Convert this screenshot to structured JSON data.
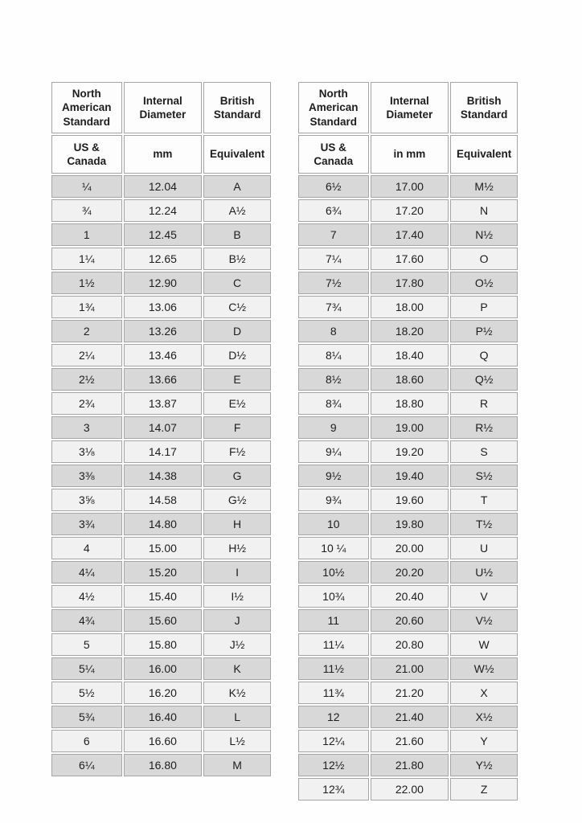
{
  "colors": {
    "row_dark": "#d8d8d8",
    "row_light": "#f1f1f1",
    "border": "#a5a5a5",
    "header_bg": "#fdfdfd",
    "text": "#1d1d1d",
    "page_bg": "#fefefe"
  },
  "tables": [
    {
      "header": [
        "North American Standard",
        "Internal Diameter",
        "British Standard"
      ],
      "subheader": [
        "US & Canada",
        "mm",
        "Equivalent"
      ],
      "rows": [
        [
          "¼",
          "12.04",
          "A"
        ],
        [
          "¾",
          "12.24",
          "A½"
        ],
        [
          "1",
          "12.45",
          "B"
        ],
        [
          "1¼",
          "12.65",
          "B½"
        ],
        [
          "1½",
          "12.90",
          "C"
        ],
        [
          "1¾",
          "13.06",
          "C½"
        ],
        [
          "2",
          "13.26",
          "D"
        ],
        [
          "2¼",
          "13.46",
          "D½"
        ],
        [
          "2½",
          "13.66",
          "E"
        ],
        [
          "2¾",
          "13.87",
          "E½"
        ],
        [
          "3",
          "14.07",
          "F"
        ],
        [
          "3⅛",
          "14.17",
          "F½"
        ],
        [
          "3⅜",
          "14.38",
          "G"
        ],
        [
          "3⅝",
          "14.58",
          "G½"
        ],
        [
          "3¾",
          "14.80",
          "H"
        ],
        [
          "4",
          "15.00",
          "H½"
        ],
        [
          "4¼",
          "15.20",
          "I"
        ],
        [
          "4½",
          "15.40",
          "I½"
        ],
        [
          "4¾",
          "15.60",
          "J"
        ],
        [
          "5",
          "15.80",
          "J½"
        ],
        [
          "5¼",
          "16.00",
          "K"
        ],
        [
          "5½",
          "16.20",
          "K½"
        ],
        [
          "5¾",
          "16.40",
          "L"
        ],
        [
          "6",
          "16.60",
          "L½"
        ],
        [
          "6¼",
          "16.80",
          "M"
        ]
      ]
    },
    {
      "header": [
        "North American Standard",
        "Internal Diameter",
        "British Standard"
      ],
      "subheader": [
        "US & Canada",
        "in mm",
        "Equivalent"
      ],
      "rows": [
        [
          "6½",
          "17.00",
          "M½"
        ],
        [
          "6¾",
          "17.20",
          "N"
        ],
        [
          "7",
          "17.40",
          "N½"
        ],
        [
          "7¼",
          "17.60",
          "O"
        ],
        [
          "7½",
          "17.80",
          "O½"
        ],
        [
          "7¾",
          "18.00",
          "P"
        ],
        [
          "8",
          "18.20",
          "P½"
        ],
        [
          "8¼",
          "18.40",
          "Q"
        ],
        [
          "8½",
          "18.60",
          "Q½"
        ],
        [
          "8¾",
          "18.80",
          "R"
        ],
        [
          "9",
          "19.00",
          "R½"
        ],
        [
          "9¼",
          "19.20",
          "S"
        ],
        [
          "9½",
          "19.40",
          "S½"
        ],
        [
          "9¾",
          "19.60",
          "T"
        ],
        [
          "10",
          "19.80",
          "T½"
        ],
        [
          "10 ¼",
          "20.00",
          "U"
        ],
        [
          "10½",
          "20.20",
          "U½"
        ],
        [
          "10¾",
          "20.40",
          "V"
        ],
        [
          "11",
          "20.60",
          "V½"
        ],
        [
          "11¼",
          "20.80",
          "W"
        ],
        [
          "11½",
          "21.00",
          "W½"
        ],
        [
          "11¾",
          "21.20",
          "X"
        ],
        [
          "12",
          "21.40",
          "X½"
        ],
        [
          "12¼",
          "21.60",
          "Y"
        ],
        [
          "12½",
          "21.80",
          "Y½"
        ],
        [
          "12¾",
          "22.00",
          "Z"
        ]
      ]
    }
  ]
}
